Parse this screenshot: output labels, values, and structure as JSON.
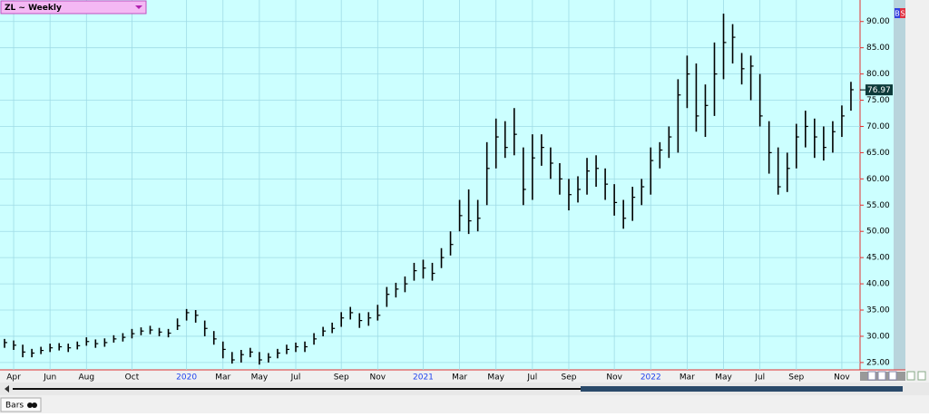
{
  "ui": {
    "symbol_label": "ZL ~ Weekly",
    "buy_badge": "B",
    "sell_badge": "S",
    "tab_label": "Bars"
  },
  "chart_data": {
    "type": "ohlc",
    "categories": [
      null,
      "Apr",
      null,
      null,
      null,
      "Jun",
      null,
      null,
      null,
      "Aug",
      null,
      null,
      null,
      null,
      "Oct",
      null,
      null,
      null,
      null,
      null,
      "2020",
      null,
      null,
      null,
      "Mar",
      null,
      null,
      null,
      "May",
      null,
      null,
      null,
      "Jul",
      null,
      null,
      null,
      null,
      "Sep",
      null,
      null,
      null,
      "Nov",
      null,
      null,
      null,
      null,
      "2021",
      null,
      null,
      null,
      "Mar",
      null,
      null,
      null,
      "May",
      null,
      null,
      null,
      "Jul",
      null,
      null,
      null,
      "Sep",
      null,
      null,
      null,
      null,
      "Nov",
      null,
      null,
      null,
      "2022",
      null,
      null,
      null,
      "Mar",
      null,
      null,
      null,
      "May",
      null,
      null,
      null,
      "Jul",
      null,
      null,
      null,
      "Sep",
      null,
      null,
      null,
      null,
      "Nov",
      null
    ],
    "high": [
      29.5,
      29.2,
      28.4,
      27.6,
      28.0,
      28.6,
      28.7,
      28.6,
      29.0,
      29.8,
      29.4,
      29.6,
      30.2,
      30.6,
      31.4,
      31.7,
      32.0,
      31.6,
      31.4,
      33.4,
      35.2,
      35.0,
      33.0,
      31.0,
      29.0,
      27.0,
      27.4,
      27.8,
      27.0,
      26.8,
      27.6,
      28.4,
      28.8,
      29.0,
      30.6,
      31.8,
      32.6,
      34.6,
      35.6,
      34.4,
      34.6,
      36.0,
      39.4,
      40.2,
      41.4,
      44.0,
      44.6,
      44.0,
      46.8,
      50.0,
      56.0,
      58.0,
      56.0,
      67.0,
      71.5,
      71.0,
      73.5,
      66.0,
      68.5,
      68.5,
      66.0,
      63.0,
      60.0,
      60.5,
      64.0,
      64.5,
      62.0,
      59.0,
      56.0,
      58.5,
      60.0,
      66.0,
      67.0,
      70.0,
      79.0,
      83.5,
      82.0,
      78.0,
      86.0,
      91.5,
      89.5,
      84.0,
      83.5,
      80.0,
      71.0,
      66.0,
      65.0,
      70.5,
      73.0,
      71.5,
      70.0,
      71.0,
      74.0,
      78.5
    ],
    "low": [
      27.8,
      27.4,
      26.0,
      26.0,
      26.6,
      27.0,
      27.3,
      27.0,
      27.5,
      28.2,
      27.8,
      28.0,
      28.8,
      29.0,
      29.6,
      30.2,
      30.4,
      30.0,
      29.8,
      31.2,
      33.0,
      32.6,
      30.0,
      28.4,
      25.8,
      24.8,
      25.0,
      26.0,
      24.6,
      25.0,
      25.8,
      26.6,
      27.0,
      27.0,
      28.4,
      30.0,
      30.6,
      31.8,
      33.2,
      31.6,
      32.0,
      33.0,
      35.6,
      37.4,
      38.4,
      40.6,
      41.0,
      40.6,
      43.0,
      45.4,
      50.0,
      49.5,
      50.0,
      55.0,
      62.0,
      64.0,
      64.5,
      55.0,
      56.0,
      62.5,
      60.0,
      57.0,
      54.0,
      55.5,
      57.0,
      58.5,
      56.0,
      53.0,
      50.5,
      52.0,
      55.0,
      57.0,
      62.0,
      64.0,
      65.0,
      73.5,
      69.0,
      68.0,
      72.0,
      79.0,
      82.0,
      78.0,
      75.0,
      70.0,
      61.0,
      57.0,
      57.5,
      62.0,
      66.0,
      64.0,
      63.5,
      65.0,
      68.0,
      73.0
    ],
    "close": [
      28.8,
      28.3,
      27.0,
      26.8,
      27.3,
      27.8,
      28.0,
      27.8,
      28.2,
      29.0,
      28.6,
      28.8,
      29.5,
      29.8,
      30.5,
      31.0,
      31.2,
      30.8,
      30.6,
      32.0,
      34.5,
      34.0,
      31.5,
      29.5,
      27.5,
      25.5,
      26.5,
      27.0,
      25.5,
      26.0,
      26.8,
      27.5,
      28.0,
      28.0,
      29.5,
      31.0,
      31.5,
      33.5,
      34.5,
      33.0,
      33.5,
      34.0,
      38.0,
      39.0,
      40.0,
      42.5,
      43.0,
      42.0,
      45.0,
      47.5,
      53.0,
      52.0,
      52.5,
      62.0,
      68.0,
      66.0,
      68.5,
      58.0,
      64.0,
      66.0,
      63.0,
      60.0,
      57.0,
      58.0,
      61.5,
      62.0,
      59.0,
      55.5,
      52.5,
      56.5,
      58.5,
      63.5,
      65.5,
      68.0,
      76.0,
      80.0,
      72.0,
      74.0,
      80.0,
      86.0,
      87.0,
      81.0,
      81.5,
      72.0,
      65.0,
      58.5,
      62.0,
      68.0,
      70.0,
      68.0,
      66.0,
      69.0,
      72.0,
      77.0
    ],
    "last_price": 76.97,
    "color": "#000000",
    "background": "#ccffff",
    "year_color": "#2244ee",
    "ylim": [
      23.6,
      94.1
    ],
    "yticks": [
      {
        "value": 25,
        "label": "25.00"
      },
      {
        "value": 30,
        "label": "30.00"
      },
      {
        "value": 35,
        "label": "35.00"
      },
      {
        "value": 40,
        "label": "40.00"
      },
      {
        "value": 45,
        "label": "45.00"
      },
      {
        "value": 50,
        "label": "50.00"
      },
      {
        "value": 55,
        "label": "55.00"
      },
      {
        "value": 60,
        "label": "60.00"
      },
      {
        "value": 65,
        "label": "65.00"
      },
      {
        "value": 70,
        "label": "70.00"
      },
      {
        "value": 75,
        "label": "75.00"
      },
      {
        "value": 80,
        "label": "80.00"
      },
      {
        "value": 85,
        "label": "85.00"
      },
      {
        "value": 90,
        "label": "90.00"
      }
    ],
    "grid": true
  }
}
